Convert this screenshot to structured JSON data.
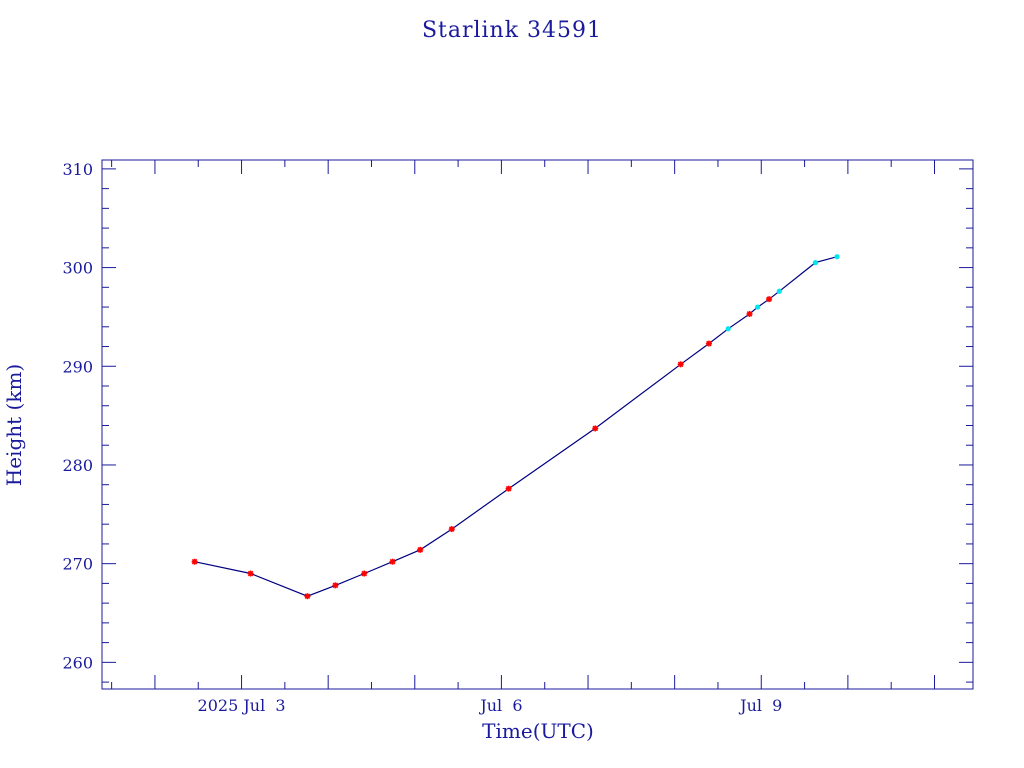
{
  "chart_data": {
    "type": "line",
    "title": "Starlink 34591",
    "xlabel": "Time(UTC)",
    "ylabel": "Height (km)",
    "x_unit": "days",
    "xlim": [
      "2025-07-01T09:20",
      "2025-07-11T10:40"
    ],
    "ylim": [
      257.3,
      310.9
    ],
    "y_ticks": [
      260,
      270,
      280,
      290,
      300,
      310
    ],
    "x_tick_labels": [
      {
        "date": "2025-07-03T00:00",
        "label": "2025 Jul  3"
      },
      {
        "date": "2025-07-06T00:00",
        "label": "Jul  6"
      },
      {
        "date": "2025-07-09T00:00",
        "label": "Jul  9"
      }
    ],
    "grid": false,
    "colors": {
      "axis": "#1a1a9c",
      "line": "#000080",
      "primary": "#ff0000",
      "secondary": "#00e5ee"
    },
    "series": [
      {
        "marker": "star",
        "color": "#ff0000",
        "points": [
          {
            "x": "2025-07-02T11:00",
            "y": 270.2
          },
          {
            "x": "2025-07-03T02:30",
            "y": 269.0
          },
          {
            "x": "2025-07-03T18:15",
            "y": 266.7
          },
          {
            "x": "2025-07-04T02:00",
            "y": 267.8
          },
          {
            "x": "2025-07-04T10:00",
            "y": 269.0
          },
          {
            "x": "2025-07-04T17:50",
            "y": 270.2
          },
          {
            "x": "2025-07-05T01:30",
            "y": 271.4
          },
          {
            "x": "2025-07-05T10:15",
            "y": 273.5
          },
          {
            "x": "2025-07-06T02:00",
            "y": 277.6
          },
          {
            "x": "2025-07-07T02:00",
            "y": 283.7
          },
          {
            "x": "2025-07-08T01:40",
            "y": 290.2
          },
          {
            "x": "2025-07-08T09:30",
            "y": 292.3
          },
          {
            "x": "2025-07-08T20:45",
            "y": 295.3
          },
          {
            "x": "2025-07-09T02:10",
            "y": 296.8
          }
        ]
      },
      {
        "marker": "dot",
        "color": "#00e5ee",
        "points": [
          {
            "x": "2025-07-08T14:50",
            "y": 293.8
          },
          {
            "x": "2025-07-08T23:00",
            "y": 296.0
          },
          {
            "x": "2025-07-09T05:00",
            "y": 297.6
          },
          {
            "x": "2025-07-09T15:00",
            "y": 300.5
          },
          {
            "x": "2025-07-09T21:00",
            "y": 301.1
          }
        ]
      }
    ]
  }
}
